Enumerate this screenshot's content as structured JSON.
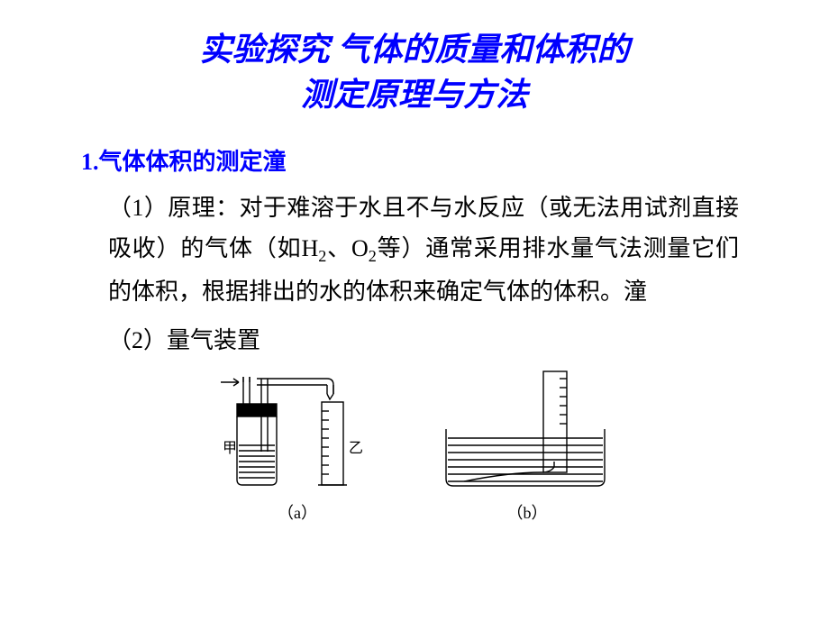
{
  "title": {
    "line1": "实验探究  气体的质量和体积的",
    "line2": "测定原理与方法"
  },
  "section1": {
    "heading": "1.气体体积的测定潼",
    "para_html": "（1）原理：对于难溶于水且不与水反应（或无法用试剂直接吸收）的气体（如H<sub>2</sub>、O<sub>2</sub>等）通常采用排水量气法测量它们的体积，根据排出的水的体积来确定气体的体积。潼",
    "sub": "（2）量气装置",
    "diagramA": {
      "label_left": "甲",
      "label_right": "乙",
      "caption": "（a）"
    },
    "diagramB": {
      "caption": "（b）"
    }
  },
  "colors": {
    "title": "#0000ff",
    "text": "#000000",
    "stroke": "#000000"
  },
  "font_sizes": {
    "title": 36,
    "heading": 26,
    "body": 26,
    "caption": 18
  }
}
